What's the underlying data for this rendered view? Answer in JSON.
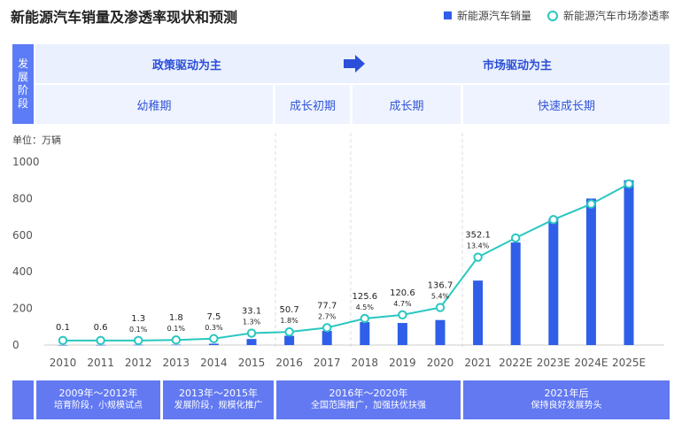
{
  "title": "新能源汽车销量及渗透率现状和预测",
  "legend": {
    "bar_label": "新能源汽车销量",
    "line_label": "新能源汽车市场渗透率"
  },
  "stage": {
    "header": [
      "发",
      "展",
      "阶",
      "段"
    ],
    "policy": "政策驱动为主",
    "market": "市场驱动为主",
    "phases": [
      "幼稚期",
      "成长初期",
      "成长期",
      "快速成长期"
    ]
  },
  "unit": "单位：万辆",
  "bottom": [
    {
      "years": "2009年～2012年",
      "desc": "培育阶段，小规模试点"
    },
    {
      "years": "2013年～2015年",
      "desc": "发展阶段，规模化推广"
    },
    {
      "years": "2016年～2020年",
      "desc": "全国范围推广，加强扶优扶强"
    },
    {
      "years": "2021年后",
      "desc": "保持良好发展势头"
    }
  ],
  "colors": {
    "bar": "#2f5fe8",
    "line": "#29c7c0",
    "stage_header": "#5b7cf6",
    "bottom": "#6279f2"
  },
  "chart_data": {
    "type": "bar",
    "categories": [
      "2010",
      "2011",
      "2012",
      "2013",
      "2014",
      "2015",
      "2016",
      "2017",
      "2018",
      "2019",
      "2020",
      "2021",
      "2022E",
      "2023E",
      "2024E",
      "2025E"
    ],
    "series": [
      {
        "name": "新能源汽车销量",
        "type": "bar",
        "values": [
          0.1,
          0.6,
          1.3,
          1.8,
          7.5,
          33.1,
          50.7,
          77.7,
          125.6,
          120.6,
          136.7,
          352.1,
          560,
          690,
          800,
          900
        ],
        "labels": [
          "0.1",
          "0.6",
          "1.3",
          "1.8",
          "7.5",
          "33.1",
          "50.7",
          "77.7",
          "125.6",
          "120.6",
          "136.7",
          "352.1",
          "",
          "",
          "",
          ""
        ]
      },
      {
        "name": "新能源汽车市场渗透率",
        "type": "line",
        "values_on_left_axis": [
          25,
          25,
          25,
          28,
          35,
          65,
          72,
          95,
          145,
          165,
          205,
          480,
          585,
          685,
          770,
          880
        ],
        "labels": [
          "",
          "",
          "0.1%",
          "0.1%",
          "0.3%",
          "1.3%",
          "1.8%",
          "2.7%",
          "4.5%",
          "4.7%",
          "5.4%",
          "13.4%",
          "",
          "",
          "",
          ""
        ]
      }
    ],
    "ylim": [
      0,
      1000
    ],
    "yticks": [
      0,
      200,
      400,
      600,
      800,
      1000
    ],
    "grid": false
  }
}
